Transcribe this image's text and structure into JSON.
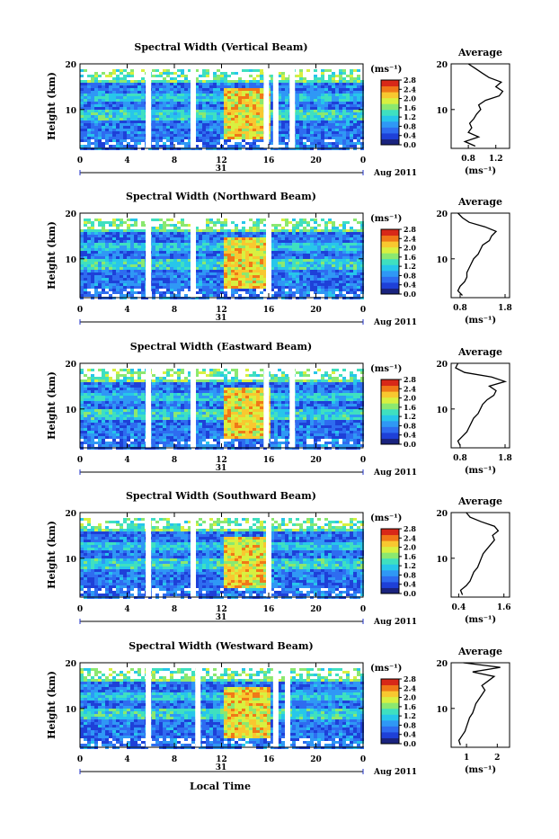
{
  "figure": {
    "xlabel_bottom": "Local Time",
    "date_label": "Aug 2011",
    "day_label": "31",
    "unit_label": "(ms⁻¹)",
    "avg_title": "Average",
    "colors": {
      "scale": [
        "#1a237e",
        "#1e40d8",
        "#2e6cf0",
        "#2f98f5",
        "#27c6ea",
        "#3fe0c0",
        "#8be870",
        "#d8f040",
        "#f8c830",
        "#f07818",
        "#d82818"
      ],
      "background": "#ffffff"
    }
  },
  "chart_data": [
    {
      "type": "heatmap",
      "title": "Spectral Width (Vertical Beam)",
      "ylabel": "Height (km)",
      "x_ticks": [
        "0",
        "4",
        "8",
        "12",
        "16",
        "20",
        "0"
      ],
      "y_ticks": [
        "10",
        "20"
      ],
      "xlim": [
        0,
        24
      ],
      "ylim": [
        1.5,
        20
      ],
      "colorbar": {
        "ticks": [
          "0.0",
          "0.4",
          "0.8",
          "1.2",
          "1.6",
          "2.0",
          "2.4",
          "2.8"
        ],
        "range": [
          0,
          2.8
        ]
      },
      "data_gaps_hours": [
        5.8,
        9.6,
        15.8,
        16.6,
        18.0
      ],
      "average_profile": {
        "xlabel": "(ms⁻¹)",
        "x_ticks": [
          "0.8",
          "1.2"
        ],
        "xlim": [
          0.55,
          1.4
        ],
        "heights": [
          2,
          3,
          4,
          5,
          6,
          7,
          8,
          9,
          10,
          11,
          12,
          13,
          14,
          15,
          16,
          17,
          18,
          19,
          20
        ],
        "values": [
          0.9,
          0.75,
          0.95,
          0.8,
          0.85,
          0.82,
          0.88,
          0.92,
          0.98,
          0.95,
          1.05,
          1.25,
          1.3,
          1.2,
          1.28,
          1.1,
          1.0,
          0.9,
          0.8
        ]
      }
    },
    {
      "type": "heatmap",
      "title": "Spectral Width (Northward Beam)",
      "ylabel": "Height (km)",
      "x_ticks": [
        "0",
        "4",
        "8",
        "12",
        "16",
        "20",
        "0"
      ],
      "y_ticks": [
        "10",
        "20"
      ],
      "xlim": [
        0,
        24
      ],
      "ylim": [
        1.5,
        20
      ],
      "colorbar": {
        "ticks": [
          "0.0",
          "0.4",
          "0.8",
          "1.2",
          "1.6",
          "2.0",
          "2.4",
          "2.8"
        ],
        "range": [
          0,
          2.8
        ]
      },
      "data_gaps_hours": [
        5.8,
        9.6,
        16.0
      ],
      "average_profile": {
        "xlabel": "(ms⁻¹)",
        "x_ticks": [
          "0.8",
          "1.8"
        ],
        "xlim": [
          0.6,
          1.9
        ],
        "heights": [
          2,
          3,
          4,
          5,
          6,
          7,
          8,
          9,
          10,
          11,
          12,
          13,
          14,
          15,
          16,
          17,
          18,
          19,
          20
        ],
        "values": [
          0.85,
          0.75,
          0.8,
          0.9,
          0.95,
          0.95,
          1.0,
          1.05,
          1.1,
          1.2,
          1.25,
          1.3,
          1.45,
          1.5,
          1.6,
          1.35,
          1.0,
          0.85,
          0.75
        ]
      }
    },
    {
      "type": "heatmap",
      "title": "Spectral Width (Eastward Beam)",
      "ylabel": "Height (km)",
      "x_ticks": [
        "0",
        "4",
        "8",
        "12",
        "16",
        "20",
        "0"
      ],
      "y_ticks": [
        "10",
        "20"
      ],
      "xlim": [
        0,
        24
      ],
      "ylim": [
        1.5,
        20
      ],
      "colorbar": {
        "ticks": [
          "0.0",
          "0.4",
          "0.8",
          "1.2",
          "1.6",
          "2.0",
          "2.4",
          "2.8"
        ],
        "range": [
          0,
          2.8
        ]
      },
      "data_gaps_hours": [
        5.8,
        9.6,
        15.8,
        18.0
      ],
      "average_profile": {
        "xlabel": "(ms⁻¹)",
        "x_ticks": [
          "0.8",
          "1.8"
        ],
        "xlim": [
          0.6,
          1.9
        ],
        "heights": [
          2,
          3,
          4,
          5,
          6,
          7,
          8,
          9,
          10,
          11,
          12,
          13,
          14,
          15,
          16,
          17,
          18,
          19,
          20
        ],
        "values": [
          0.8,
          0.75,
          0.85,
          0.95,
          1.0,
          1.05,
          1.1,
          1.2,
          1.25,
          1.3,
          1.4,
          1.55,
          1.6,
          1.45,
          1.8,
          1.5,
          0.9,
          0.7,
          0.75
        ]
      }
    },
    {
      "type": "heatmap",
      "title": "Spectral Width (Southward Beam)",
      "ylabel": "Height (km)",
      "x_ticks": [
        "0",
        "4",
        "8",
        "12",
        "16",
        "20",
        "0"
      ],
      "y_ticks": [
        "10",
        "20"
      ],
      "xlim": [
        0,
        24
      ],
      "ylim": [
        1.5,
        20
      ],
      "colorbar": {
        "ticks": [
          "0.0",
          "0.4",
          "0.8",
          "1.2",
          "1.6",
          "2.0",
          "2.4",
          "2.8"
        ],
        "range": [
          0,
          2.8
        ]
      },
      "data_gaps_hours": [
        5.8,
        9.6,
        16.0
      ],
      "average_profile": {
        "xlabel": "(ms⁻¹)",
        "x_ticks": [
          "0.4",
          "1.6"
        ],
        "xlim": [
          0.2,
          1.75
        ],
        "heights": [
          2,
          3,
          4,
          5,
          6,
          7,
          8,
          9,
          10,
          11,
          12,
          13,
          14,
          15,
          16,
          17,
          18,
          19,
          20
        ],
        "values": [
          0.5,
          0.45,
          0.6,
          0.7,
          0.75,
          0.8,
          0.9,
          0.95,
          1.0,
          1.05,
          1.15,
          1.25,
          1.35,
          1.3,
          1.45,
          1.35,
          1.0,
          0.7,
          0.6
        ]
      }
    },
    {
      "type": "heatmap",
      "title": "Spectral Width (Westward Beam)",
      "ylabel": "Height (km)",
      "x_ticks": [
        "0",
        "4",
        "8",
        "12",
        "16",
        "20",
        "0"
      ],
      "y_ticks": [
        "10",
        "20"
      ],
      "xlim": [
        0,
        24
      ],
      "ylim": [
        1.5,
        20
      ],
      "colorbar": {
        "ticks": [
          "0.0",
          "0.4",
          "0.8",
          "1.2",
          "1.6",
          "2.0",
          "2.4",
          "2.8"
        ],
        "range": [
          0,
          2.8
        ]
      },
      "data_gaps_hours": [
        5.8,
        10.0,
        16.6,
        17.6
      ],
      "average_profile": {
        "xlabel": "(ms⁻¹)",
        "x_ticks": [
          "1",
          "2"
        ],
        "xlim": [
          0.5,
          2.4
        ],
        "heights": [
          2,
          3,
          4,
          5,
          6,
          7,
          8,
          9,
          10,
          11,
          12,
          13,
          14,
          15,
          16,
          17,
          18,
          19,
          20
        ],
        "values": [
          0.8,
          0.75,
          0.85,
          0.95,
          1.0,
          1.05,
          1.1,
          1.2,
          1.25,
          1.3,
          1.4,
          1.5,
          1.6,
          1.5,
          1.7,
          1.9,
          1.2,
          2.1,
          0.9
        ]
      }
    }
  ]
}
